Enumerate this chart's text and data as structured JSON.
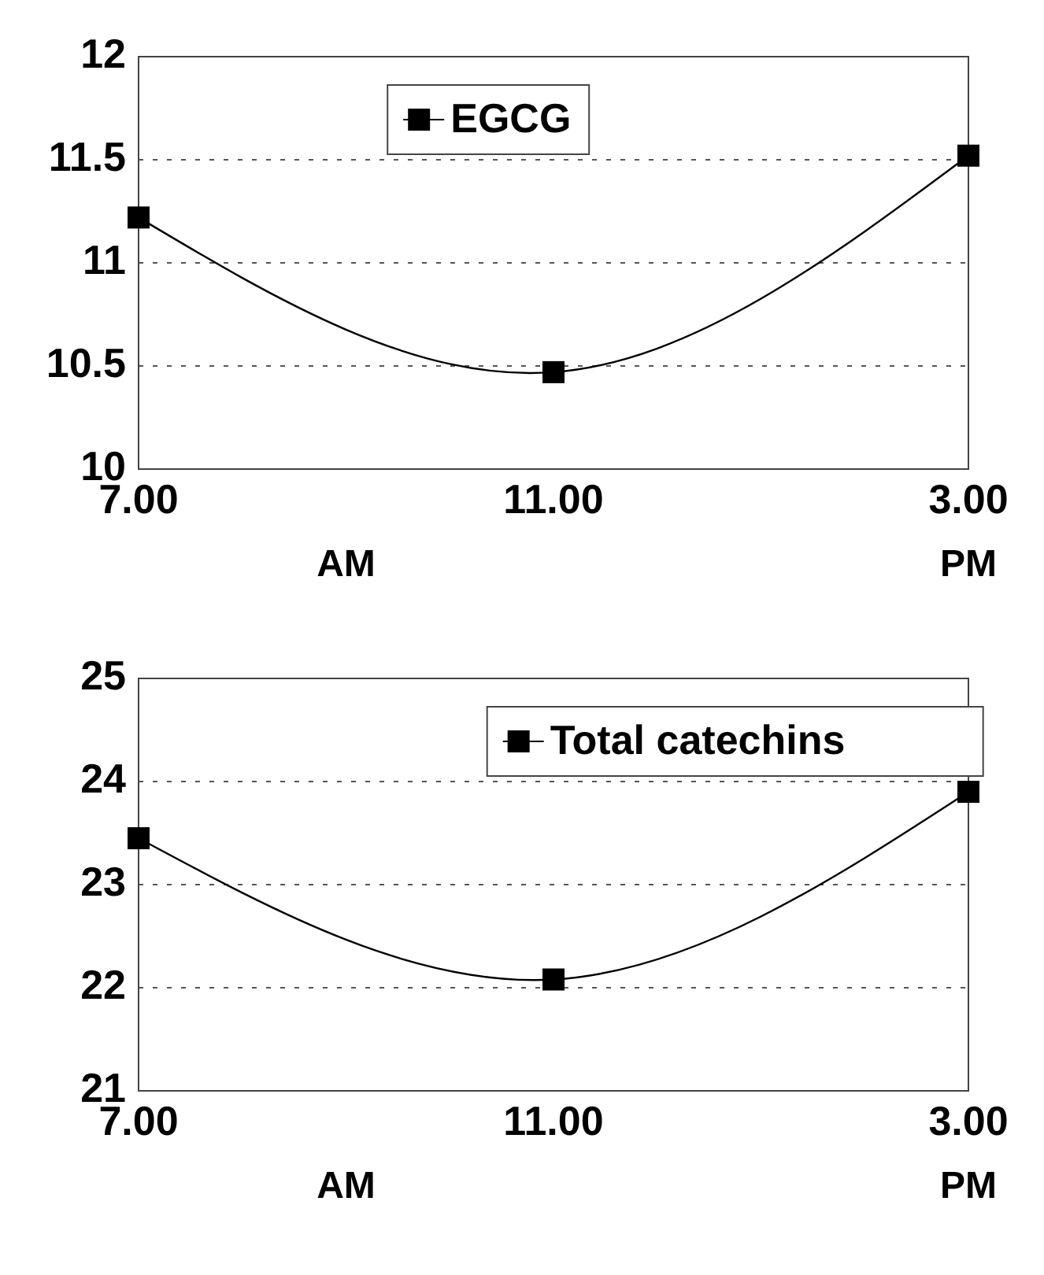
{
  "chart_data": [
    {
      "type": "line",
      "categories": [
        "7.00",
        "11.00",
        "3.00"
      ],
      "series": [
        {
          "name": "EGCG",
          "color": "#000000",
          "values": [
            11.22,
            10.47,
            11.52
          ]
        }
      ],
      "ylim": [
        10,
        12
      ],
      "yticks": [
        10,
        {
          "value": 10.5,
          "label": "10.5"
        },
        11,
        {
          "value": 11.5,
          "label": "11.5"
        },
        12
      ],
      "grid": "y",
      "legend": "top",
      "marker": "square",
      "line_style": "solid",
      "annotations": [
        "AM",
        "PM"
      ]
    },
    {
      "type": "line",
      "categories": [
        "7.00",
        "11.00",
        "3.00"
      ],
      "series": [
        {
          "name": "Total catechins",
          "color": "#000000",
          "values": [
            23.45,
            22.08,
            23.9
          ]
        }
      ],
      "ylim": [
        21,
        25
      ],
      "yticks": [
        21,
        22,
        23,
        24,
        25
      ],
      "grid": "y",
      "legend": "top right",
      "marker": "square",
      "line_style": "solid",
      "annotations": [
        "AM",
        "PM"
      ]
    }
  ]
}
